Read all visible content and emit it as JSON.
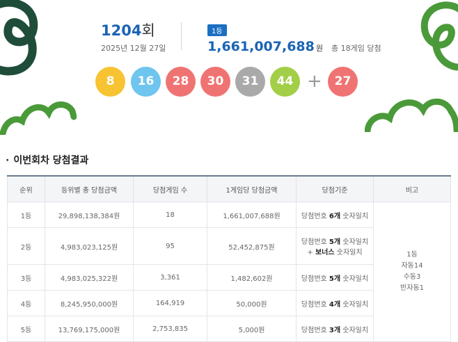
{
  "draw": {
    "round_number": "1204",
    "round_suffix": "회",
    "date": "2025년 12월 27일"
  },
  "first_prize": {
    "badge": "1등",
    "amount": "1,661,007,688",
    "unit": "원",
    "games": "총 18게임 당첨"
  },
  "balls": [
    {
      "number": "8",
      "color": "#f7c332"
    },
    {
      "number": "16",
      "color": "#6ec5ee"
    },
    {
      "number": "28",
      "color": "#f07373"
    },
    {
      "number": "30",
      "color": "#f07373"
    },
    {
      "number": "31",
      "color": "#a9a9a9"
    },
    {
      "number": "44",
      "color": "#a2cf47"
    }
  ],
  "plus_sign": "+",
  "bonus_ball": {
    "number": "27",
    "color": "#f07373"
  },
  "section_title": "이번회차 당첨결과",
  "table": {
    "headers": [
      "순위",
      "등위별 총 당첨금액",
      "당첨게임 수",
      "1게임당 당첨금액",
      "당첨기준",
      "비고"
    ],
    "rows": [
      {
        "rank": "1등",
        "total": "29,898,138,384원",
        "games": "18",
        "per_game": "1,661,007,688원",
        "crit_pre": "당첨번호 ",
        "crit_bold": "6개",
        "crit_post": " 숫자일치"
      },
      {
        "rank": "2등",
        "total": "4,983,023,125원",
        "games": "95",
        "per_game": "52,452,875원",
        "crit_pre": "당첨번호 ",
        "crit_bold": "5개",
        "crit_post": " 숫자일치",
        "crit2_pre": "+ ",
        "crit2_bold": "보너스",
        "crit2_post": " 숫자일치"
      },
      {
        "rank": "3등",
        "total": "4,983,025,322원",
        "games": "3,361",
        "per_game": "1,482,602원",
        "crit_pre": "당첨번호 ",
        "crit_bold": "5개",
        "crit_post": " 숫자일치"
      },
      {
        "rank": "4등",
        "total": "8,245,950,000원",
        "games": "164,919",
        "per_game": "50,000원",
        "crit_pre": "당첨번호 ",
        "crit_bold": "4개",
        "crit_post": " 숫자일치"
      },
      {
        "rank": "5등",
        "total": "13,769,175,000원",
        "games": "2,753,835",
        "per_game": "5,000원",
        "crit_pre": "당첨번호 ",
        "crit_bold": "3개",
        "crit_post": " 숫자일치"
      }
    ],
    "remarks": [
      "1등",
      "자동14",
      "수동3",
      "반자동1"
    ]
  },
  "colors": {
    "accent_blue": "#1a64b3",
    "deco_green": "#4a9a3a",
    "deco_dark_green": "#1f4d3a"
  }
}
